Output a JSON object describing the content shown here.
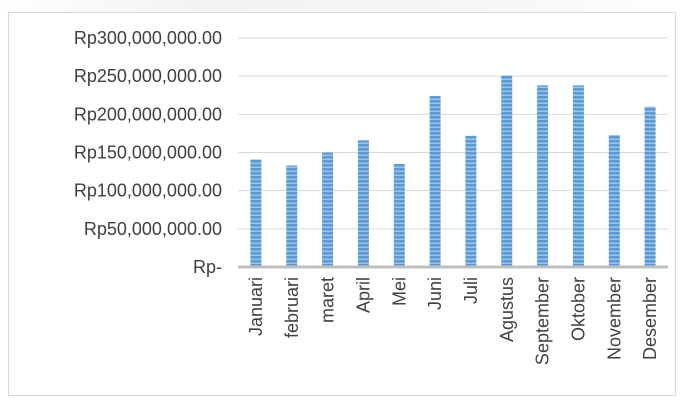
{
  "chart_data": {
    "type": "bar",
    "title": "",
    "xlabel": "",
    "ylabel": "",
    "ylim": [
      0,
      300000000
    ],
    "yticks": [
      0,
      50000000,
      100000000,
      150000000,
      200000000,
      250000000,
      300000000
    ],
    "ytick_labels": [
      "Rp-",
      "Rp50,000,000.00",
      "Rp100,000,000.00",
      "Rp150,000,000.00",
      "Rp200,000,000.00",
      "Rp250,000,000.00",
      "Rp300,000,000.00"
    ],
    "categories": [
      "Januari",
      "februari",
      "maret",
      "April",
      "Mei",
      "Juni",
      "Juli",
      "Agustus",
      "September",
      "Oktober",
      "November",
      "Desember"
    ],
    "values": [
      141000000,
      133000000,
      150000000,
      166000000,
      135000000,
      224000000,
      172000000,
      251000000,
      238000000,
      238000000,
      173000000,
      210000000
    ],
    "grid": true,
    "legend": "none",
    "bar_color": "#5b9bd5",
    "gridline_color": "#d9d9d9",
    "axis_color": "#bfbfbf"
  }
}
